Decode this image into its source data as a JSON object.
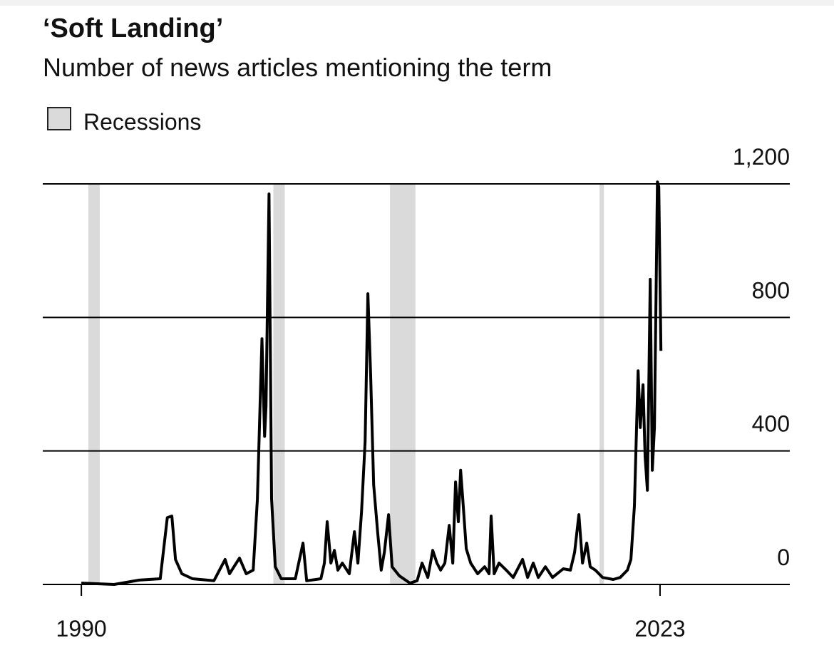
{
  "chart_data": {
    "type": "line",
    "title": "‘Soft Landing’",
    "subtitle": "Number of news articles mentioning the term",
    "recessions": {
      "name": "Recessions",
      "color": "#dadada",
      "spans": [
        [
          1990.4,
          1991.05
        ],
        [
          2000.95,
          2001.6
        ],
        [
          2007.6,
          2009.05
        ],
        [
          2019.55,
          2019.8
        ]
      ]
    },
    "color": "#000000",
    "x": [
      1990.0,
      1991.87,
      1993.3,
      1994.5,
      1994.9,
      1995.16,
      1995.37,
      1995.73,
      1996.34,
      1997.56,
      1998.2,
      1998.45,
      1998.7,
      1999.02,
      1999.4,
      1999.8,
      2000.04,
      2000.3,
      2000.45,
      2000.53,
      2000.7,
      2000.85,
      2001.06,
      2001.4,
      2002.2,
      2002.64,
      2002.85,
      2003.66,
      2003.86,
      2004.02,
      2004.23,
      2004.43,
      2004.63,
      2004.88,
      2005.28,
      2005.57,
      2005.77,
      2005.98,
      2006.18,
      2006.34,
      2006.5,
      2006.67,
      2006.9,
      2007.1,
      2007.28,
      2007.52,
      2007.72,
      2008.13,
      2008.74,
      2009.15,
      2009.43,
      2009.76,
      2010.04,
      2010.28,
      2010.49,
      2010.73,
      2010.98,
      2011.18,
      2011.34,
      2011.5,
      2011.63,
      2011.75,
      2011.95,
      2012.2,
      2012.6,
      2013.0,
      2013.25,
      2013.37,
      2013.54,
      2013.82,
      2014.23,
      2014.63,
      2015.16,
      2015.45,
      2015.77,
      2016.06,
      2016.46,
      2016.87,
      2017.48,
      2017.89,
      2018.13,
      2018.37,
      2018.58,
      2018.82,
      2019.02,
      2019.31,
      2019.72,
      2020.33,
      2020.73,
      2021.14,
      2021.34,
      2021.54,
      2021.75,
      2021.87,
      2022.03,
      2022.15,
      2022.28,
      2022.44,
      2022.56,
      2022.68,
      2022.85,
      2022.93,
      2023.05
    ],
    "values": [
      4,
      0,
      13,
      17,
      200,
      205,
      75,
      32,
      17,
      11,
      75,
      32,
      53,
      79,
      32,
      43,
      256,
      736,
      444,
      534,
      1170,
      256,
      53,
      17,
      17,
      124,
      11,
      17,
      64,
      188,
      64,
      102,
      43,
      64,
      32,
      158,
      64,
      218,
      427,
      871,
      625,
      299,
      154,
      43,
      96,
      209,
      53,
      26,
      4,
      11,
      64,
      21,
      102,
      64,
      43,
      64,
      177,
      64,
      307,
      188,
      342,
      256,
      107,
      64,
      32,
      53,
      32,
      205,
      32,
      64,
      43,
      21,
      75,
      21,
      64,
      21,
      53,
      21,
      47,
      43,
      96,
      209,
      64,
      124,
      53,
      43,
      21,
      15,
      21,
      43,
      75,
      235,
      640,
      470,
      598,
      384,
      282,
      914,
      342,
      470,
      1206,
      1191,
      700
    ],
    "xlim": [
      1987.8,
      2030.4
    ],
    "xticks": [
      1990,
      2023
    ],
    "ylim": [
      0,
      1200
    ],
    "yticks": [
      0,
      400,
      800,
      {
        "value": 1200,
        "label": "1,200"
      }
    ],
    "grid": true
  }
}
